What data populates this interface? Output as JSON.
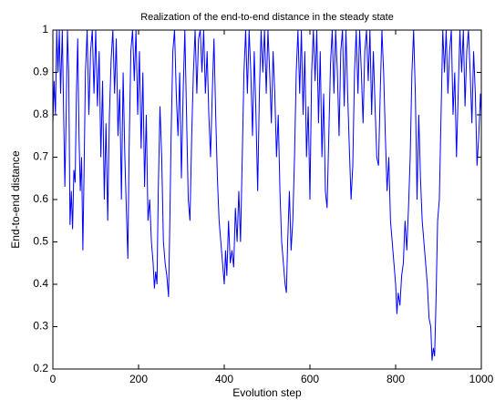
{
  "chart_data": {
    "type": "line",
    "title": "Realization of the end-to-end distance in the steady state",
    "xlabel": "Evolution step",
    "ylabel": "End-to-end distance",
    "x": [
      0,
      3,
      6,
      9,
      12,
      15,
      18,
      22,
      26,
      28,
      31,
      34,
      37,
      40,
      43,
      46,
      49,
      52,
      55,
      58,
      61,
      64,
      67,
      70,
      73,
      76,
      80,
      84,
      88,
      92,
      96,
      100,
      104,
      108,
      112,
      116,
      120,
      124,
      128,
      132,
      136,
      140,
      144,
      148,
      152,
      156,
      160,
      164,
      168,
      172,
      175,
      178,
      182,
      186,
      190,
      194,
      198,
      202,
      206,
      210,
      214,
      218,
      222,
      226,
      230,
      234,
      237,
      240,
      243,
      246,
      250,
      254,
      258,
      262,
      266,
      270,
      273,
      276,
      280,
      284,
      288,
      292,
      296,
      300,
      304,
      308,
      312,
      316,
      320,
      324,
      328,
      332,
      336,
      340,
      344,
      348,
      352,
      356,
      360,
      364,
      368,
      372,
      376,
      380,
      384,
      388,
      392,
      396,
      400,
      403,
      406,
      410,
      414,
      418,
      422,
      426,
      430,
      434,
      438,
      442,
      446,
      450,
      454,
      458,
      462,
      466,
      470,
      474,
      478,
      482,
      486,
      490,
      494,
      498,
      502,
      506,
      510,
      514,
      518,
      522,
      526,
      530,
      534,
      538,
      542,
      545,
      548,
      552,
      556,
      560,
      564,
      568,
      572,
      576,
      580,
      584,
      588,
      592,
      596,
      600,
      604,
      608,
      612,
      616,
      620,
      624,
      628,
      632,
      636,
      640,
      644,
      648,
      652,
      656,
      660,
      664,
      668,
      672,
      676,
      680,
      684,
      688,
      692,
      696,
      700,
      704,
      708,
      712,
      716,
      720,
      724,
      728,
      732,
      736,
      740,
      744,
      748,
      752,
      756,
      760,
      764,
      768,
      772,
      776,
      780,
      784,
      788,
      792,
      796,
      800,
      803,
      806,
      810,
      814,
      818,
      822,
      826,
      830,
      834,
      838,
      842,
      846,
      850,
      854,
      858,
      862,
      866,
      870,
      874,
      878,
      882,
      885,
      888,
      891,
      894,
      898,
      902,
      906,
      910,
      914,
      918,
      922,
      926,
      930,
      934,
      938,
      942,
      946,
      950,
      954,
      958,
      962,
      966,
      970,
      974,
      978,
      982,
      986,
      990,
      994,
      998,
      1000
    ],
    "series": [
      {
        "name": "End-to-end distance",
        "color": "#0000ff",
        "values": [
          0.78,
          0.88,
          0.8,
          1,
          0.9,
          1,
          0.85,
          1,
          0.75,
          0.63,
          0.8,
          1,
          0.9,
          0.54,
          0.62,
          0.53,
          0.67,
          0.64,
          0.85,
          0.98,
          0.75,
          0.62,
          0.7,
          0.48,
          0.68,
          0.9,
          1,
          0.8,
          0.95,
          1,
          0.85,
          1,
          0.82,
          0.95,
          0.7,
          0.88,
          0.6,
          0.78,
          0.55,
          0.8,
          0.93,
          1,
          0.85,
          0.98,
          0.75,
          0.86,
          0.6,
          0.9,
          0.7,
          0.56,
          0.46,
          0.72,
          0.95,
          1,
          0.88,
          1,
          0.8,
          0.95,
          0.72,
          0.9,
          0.63,
          0.8,
          0.55,
          0.6,
          0.5,
          0.45,
          0.39,
          0.43,
          0.4,
          0.62,
          0.82,
          0.7,
          0.5,
          0.45,
          0.42,
          0.37,
          0.55,
          0.75,
          0.95,
          1,
          0.85,
          0.75,
          0.9,
          0.65,
          0.85,
          1,
          0.8,
          0.6,
          0.55,
          0.75,
          0.9,
          1,
          0.85,
          0.98,
          1,
          0.9,
          1,
          0.85,
          0.95,
          0.8,
          0.7,
          0.85,
          0.98,
          0.8,
          0.65,
          0.55,
          0.5,
          0.45,
          0.4,
          0.48,
          0.42,
          0.55,
          0.45,
          0.48,
          0.44,
          0.58,
          0.5,
          0.62,
          0.5,
          0.7,
          0.9,
          1,
          0.85,
          1,
          0.9,
          0.75,
          0.95,
          0.8,
          0.62,
          0.85,
          1,
          0.9,
          1,
          0.85,
          1,
          0.9,
          0.78,
          0.95,
          0.85,
          0.7,
          0.8,
          0.62,
          0.5,
          0.45,
          0.4,
          0.38,
          0.5,
          0.62,
          0.48,
          0.55,
          0.7,
          0.9,
          1,
          0.85,
          1,
          0.8,
          0.95,
          0.7,
          0.82,
          0.6,
          0.9,
          1,
          0.88,
          1,
          0.78,
          0.95,
          0.7,
          0.85,
          0.62,
          0.58,
          0.75,
          0.92,
          1,
          0.85,
          1,
          0.9,
          0.75,
          0.95,
          1,
          0.82,
          1,
          0.85,
          0.72,
          0.6,
          0.68,
          0.9,
          1,
          0.85,
          1,
          0.9,
          0.78,
          0.95,
          1,
          0.88,
          1,
          0.8,
          0.95,
          0.82,
          0.7,
          0.68,
          0.85,
          1,
          0.9,
          0.75,
          0.62,
          0.7,
          0.55,
          0.5,
          0.45,
          0.4,
          0.33,
          0.38,
          0.35,
          0.42,
          0.45,
          0.55,
          0.48,
          0.58,
          0.7,
          0.9,
          1,
          0.85,
          0.6,
          0.8,
          0.65,
          0.55,
          0.5,
          0.45,
          0.4,
          0.32,
          0.3,
          0.22,
          0.25,
          0.23,
          0.35,
          0.55,
          0.6,
          0.8,
          1,
          0.9,
          1,
          0.85,
          0.95,
          1,
          0.8,
          0.9,
          0.7,
          0.85,
          1,
          0.9,
          1,
          0.82,
          0.95,
          1,
          0.9,
          0.78,
          0.95,
          0.85,
          0.68,
          0.75,
          0.85,
          0.8
        ]
      }
    ],
    "xlim": [
      0,
      1000
    ],
    "xticks": [
      0,
      200,
      400,
      600,
      800,
      1000
    ],
    "ylim": [
      0.2,
      1
    ],
    "yticks": [
      0.2,
      0.3,
      0.4,
      0.5,
      0.6,
      0.7,
      0.8,
      0.9,
      1
    ],
    "grid": false
  }
}
